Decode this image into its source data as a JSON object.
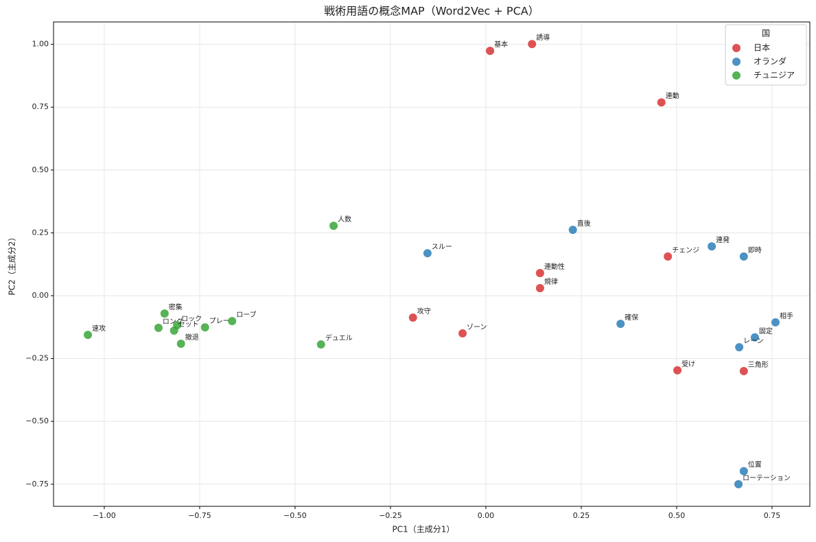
{
  "chart_data": {
    "type": "scatter",
    "title": "戦術用語の概念MAP（Word2Vec + PCA）",
    "x_label": "PC1（主成分1）",
    "y_label": "PC2（主成分2）",
    "legend_title": "国",
    "legend_position": "upper right",
    "grid": true,
    "xlim": [
      -1.133,
      0.849
    ],
    "ylim": [
      -0.838,
      1.089
    ],
    "xticks": [
      {
        "value": -1,
        "label": "−1.00"
      },
      {
        "value": -0.75,
        "label": "−0.75"
      },
      {
        "value": -0.5,
        "label": "−0.50"
      },
      {
        "value": -0.25,
        "label": "−0.25"
      },
      {
        "value": 0,
        "label": "0.00"
      },
      {
        "value": 0.25,
        "label": "0.25"
      },
      {
        "value": 0.5,
        "label": "0.50"
      },
      {
        "value": 0.75,
        "label": "0.75"
      }
    ],
    "yticks": [
      {
        "value": -0.75,
        "label": "−0.75"
      },
      {
        "value": -0.5,
        "label": "−0.50"
      },
      {
        "value": -0.25,
        "label": "−0.25"
      },
      {
        "value": 0,
        "label": "0.00"
      },
      {
        "value": 0.25,
        "label": "0.25"
      },
      {
        "value": 0.5,
        "label": "0.50"
      },
      {
        "value": 0.75,
        "label": "0.75"
      },
      {
        "value": 1,
        "label": "1.00"
      }
    ],
    "series": [
      {
        "name": "日本",
        "color": "#d62728",
        "labels": [
          "基本",
          "誘導",
          "連動",
          "チェンジ",
          "連動性",
          "規律",
          "攻守",
          "ゾーン",
          "受け",
          "三角形"
        ],
        "x": [
          0.011,
          0.121,
          0.46,
          0.477,
          0.142,
          0.142,
          -0.191,
          -0.061,
          0.502,
          0.676
        ],
        "values": [
          0.974,
          1.001,
          0.769,
          0.156,
          0.09,
          0.03,
          -0.087,
          -0.15,
          -0.297,
          -0.3
        ]
      },
      {
        "name": "オランダ",
        "color": "#1f77b4",
        "labels": [
          "直後",
          "スルー",
          "連発",
          "即時",
          "確保",
          "相手",
          "固定",
          "レーン",
          "位置",
          "ローテーション"
        ],
        "x": [
          0.228,
          -0.153,
          0.592,
          0.676,
          0.353,
          0.759,
          0.705,
          0.664,
          0.676,
          0.662
        ],
        "values": [
          0.262,
          0.169,
          0.196,
          0.156,
          -0.112,
          -0.106,
          -0.166,
          -0.205,
          -0.698,
          -0.75
        ]
      },
      {
        "name": "チュニジア",
        "color": "#2ca02c",
        "labels": [
          "人数",
          "密集",
          "ロング",
          "ロック",
          "セット",
          "プレー",
          "ローブ",
          "撤退",
          "速攻",
          "デュエル"
        ],
        "x": [
          -0.399,
          -0.842,
          -0.858,
          -0.809,
          -0.817,
          -0.736,
          -0.665,
          -0.799,
          -1.043,
          -0.432
        ],
        "values": [
          0.278,
          -0.071,
          -0.128,
          -0.117,
          -0.139,
          -0.126,
          -0.101,
          -0.191,
          -0.156,
          -0.194
        ]
      }
    ]
  }
}
